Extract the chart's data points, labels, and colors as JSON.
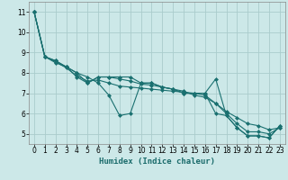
{
  "xlabel": "Humidex (Indice chaleur)",
  "bg_color": "#cce8e8",
  "line_color": "#1a7070",
  "grid_color": "#aacccc",
  "xlim": [
    -0.5,
    23.5
  ],
  "ylim": [
    4.5,
    11.5
  ],
  "xticks": [
    0,
    1,
    2,
    3,
    4,
    5,
    6,
    7,
    8,
    9,
    10,
    11,
    12,
    13,
    14,
    15,
    16,
    17,
    18,
    19,
    20,
    21,
    22,
    23
  ],
  "yticks": [
    5,
    6,
    7,
    8,
    9,
    10,
    11
  ],
  "lines": [
    [
      11.0,
      8.8,
      8.6,
      8.3,
      8.0,
      7.8,
      7.5,
      6.9,
      5.9,
      6.0,
      7.5,
      7.5,
      7.3,
      7.2,
      7.0,
      7.0,
      7.0,
      7.7,
      5.9,
      5.3,
      4.9,
      4.9,
      4.8,
      5.4
    ],
    [
      11.0,
      8.8,
      8.6,
      8.3,
      7.8,
      7.5,
      7.8,
      7.8,
      7.8,
      7.8,
      7.5,
      7.5,
      7.3,
      7.2,
      7.0,
      7.0,
      7.0,
      6.0,
      5.9,
      5.3,
      4.9,
      4.9,
      4.8,
      5.4
    ],
    [
      11.0,
      8.8,
      8.55,
      8.25,
      7.85,
      7.6,
      7.65,
      7.5,
      7.35,
      7.3,
      7.25,
      7.2,
      7.15,
      7.1,
      7.05,
      7.0,
      6.9,
      6.5,
      6.0,
      5.5,
      5.1,
      5.1,
      5.0,
      5.3
    ],
    [
      11.0,
      8.8,
      8.5,
      8.3,
      8.0,
      7.5,
      7.8,
      7.8,
      7.7,
      7.6,
      7.45,
      7.4,
      7.3,
      7.2,
      7.1,
      6.9,
      6.8,
      6.5,
      6.1,
      5.8,
      5.5,
      5.4,
      5.2,
      5.3
    ]
  ],
  "xlabel_fontsize": 6.5,
  "tick_fontsize": 5.5
}
